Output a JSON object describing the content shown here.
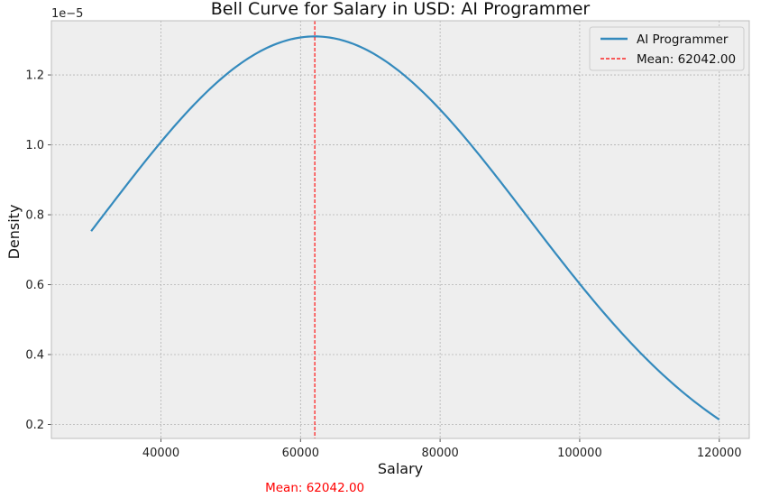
{
  "chart_data": {
    "type": "line",
    "title": "Bell Curve for Salary in USD: AI Programmer",
    "xlabel": "Salary",
    "ylabel": "Density",
    "y_offset_label": "1e−5",
    "xlim": [
      24300,
      124300
    ],
    "ylim": [
      0.16,
      1.355
    ],
    "y_scale_factor": 1e-05,
    "xticks": [
      40000,
      60000,
      80000,
      100000,
      120000
    ],
    "yticks": [
      0.2,
      0.4,
      0.6,
      0.8,
      1.0,
      1.2
    ],
    "xtick_labels": [
      "40000",
      "60000",
      "80000",
      "100000",
      "120000"
    ],
    "ytick_labels": [
      "0.2",
      "0.4",
      "0.6",
      "0.8",
      "1.0",
      "1.2"
    ],
    "grid": true,
    "legend_position": "top-right",
    "series": [
      {
        "name": "AI Programmer",
        "color": "#348abd",
        "distribution": "normal",
        "mean": 62042,
        "std": 30450,
        "x_range": [
          30000,
          120000
        ]
      }
    ],
    "mean_line": {
      "value": 62042,
      "label": "Mean: 62042.00",
      "color": "#ff0000",
      "style": "dashed"
    },
    "annotation": {
      "text": "Mean: 62042.00",
      "color": "#ff0000"
    }
  }
}
